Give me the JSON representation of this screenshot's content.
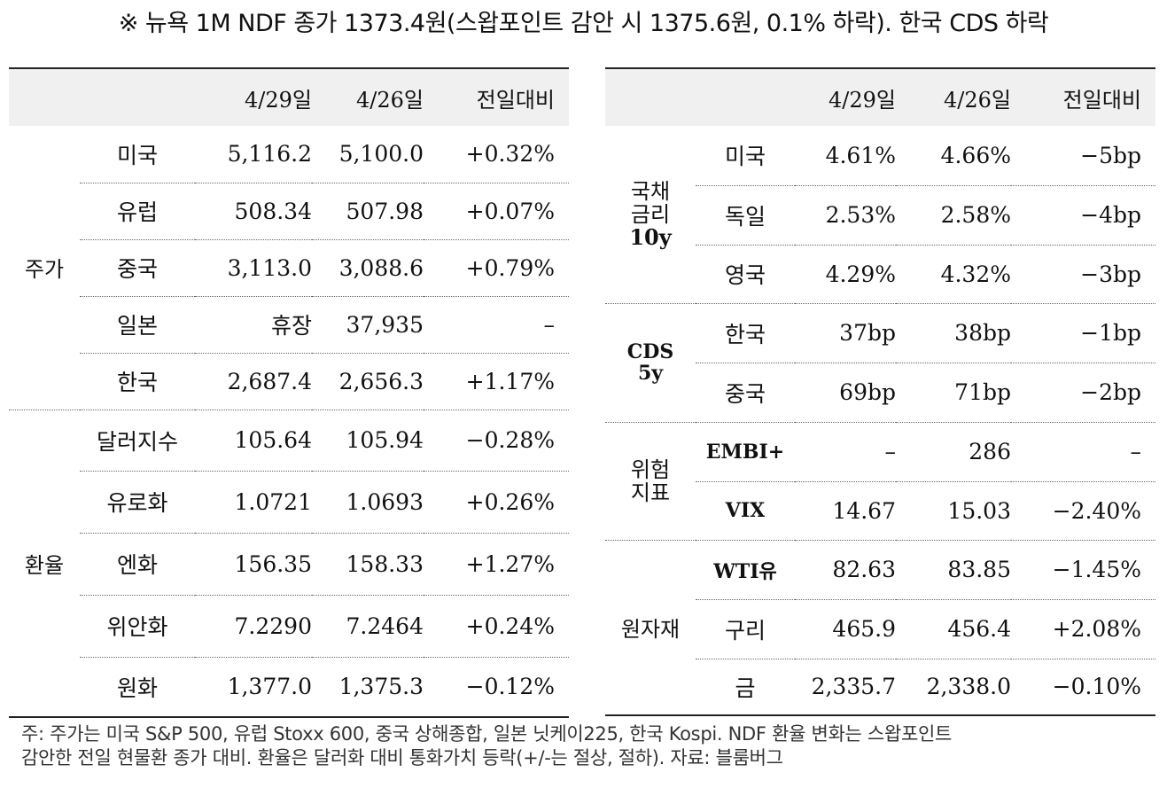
{
  "title": "※ 뉴욕 1M NDF 종가 1373.4원(스왑포인트 감안 시 1375.6원, 0.1% 하락). 한국 CDS 하락",
  "left_table": {
    "headers": [
      "",
      "",
      "4/29일",
      "4/26일",
      "전일대비"
    ],
    "groups": [
      {
        "label": "주가",
        "rows": [
          {
            "name": "미국",
            "d1": "5,116.2",
            "d2": "5,100.0",
            "chg": "+0.32%"
          },
          {
            "name": "유럽",
            "d1": "508.34",
            "d2": "507.98",
            "chg": "+0.07%"
          },
          {
            "name": "중국",
            "d1": "3,113.0",
            "d2": "3,088.6",
            "chg": "+0.79%"
          },
          {
            "name": "일본",
            "d1": "휴장",
            "d2": "37,935",
            "chg": "–"
          },
          {
            "name": "한국",
            "d1": "2,687.4",
            "d2": "2,656.3",
            "chg": "+1.17%"
          }
        ]
      },
      {
        "label": "환율",
        "rows": [
          {
            "name": "달러지수",
            "d1": "105.64",
            "d2": "105.94",
            "chg": "−0.28%"
          },
          {
            "name": "유로화",
            "d1": "1.0721",
            "d2": "1.0693",
            "chg": "+0.26%"
          },
          {
            "name": "엔화",
            "d1": "156.35",
            "d2": "158.33",
            "chg": "+1.27%"
          },
          {
            "name": "위안화",
            "d1": "7.2290",
            "d2": "7.2464",
            "chg": "+0.24%"
          },
          {
            "name": "원화",
            "d1": "1,377.0",
            "d2": "1,375.3",
            "chg": "−0.12%"
          }
        ]
      }
    ]
  },
  "right_table": {
    "headers": [
      "",
      "",
      "4/29일",
      "4/26일",
      "전일대비"
    ],
    "groups": [
      {
        "label_lines": [
          "국채",
          "금리",
          "10y"
        ],
        "rows": [
          {
            "name": "미국",
            "d1": "4.61%",
            "d2": "4.66%",
            "chg": "−5bp"
          },
          {
            "name": "독일",
            "d1": "2.53%",
            "d2": "2.58%",
            "chg": "−4bp"
          },
          {
            "name": "영국",
            "d1": "4.29%",
            "d2": "4.32%",
            "chg": "−3bp"
          }
        ]
      },
      {
        "label_lines": [
          "CDS",
          "5y"
        ],
        "rows": [
          {
            "name": "한국",
            "d1": "37bp",
            "d2": "38bp",
            "chg": "−1bp"
          },
          {
            "name": "중국",
            "d1": "69bp",
            "d2": "71bp",
            "chg": "−2bp"
          }
        ]
      },
      {
        "label_lines": [
          "위험",
          "지표"
        ],
        "rows": [
          {
            "name": "EMBI+",
            "d1": "–",
            "d2": "286",
            "chg": "–"
          },
          {
            "name": "VIX",
            "d1": "14.67",
            "d2": "15.03",
            "chg": "−2.40%"
          }
        ]
      },
      {
        "label_lines": [
          "원자재"
        ],
        "rows": [
          {
            "name": "WTI유",
            "d1": "82.63",
            "d2": "83.85",
            "chg": "−1.45%"
          },
          {
            "name": "구리",
            "d1": "465.9",
            "d2": "456.4",
            "chg": "+2.08%"
          },
          {
            "name": "금",
            "d1": "2,335.7",
            "d2": "2,338.0",
            "chg": "−0.10%"
          }
        ]
      }
    ]
  },
  "footnote": {
    "line1": "주: 주가는 미국 S&P 500, 유럽 Stoxx 600, 중국 상해종합, 일본 닛케이225, 한국 Kospi. NDF 환율 변화는 스왑포인트",
    "line2": "감안한 전일 현물환 종가 대비. 환율은 달러화 대비 통화가치 등락(+/-는 절상, 절하). 자료: 블룸버그"
  }
}
